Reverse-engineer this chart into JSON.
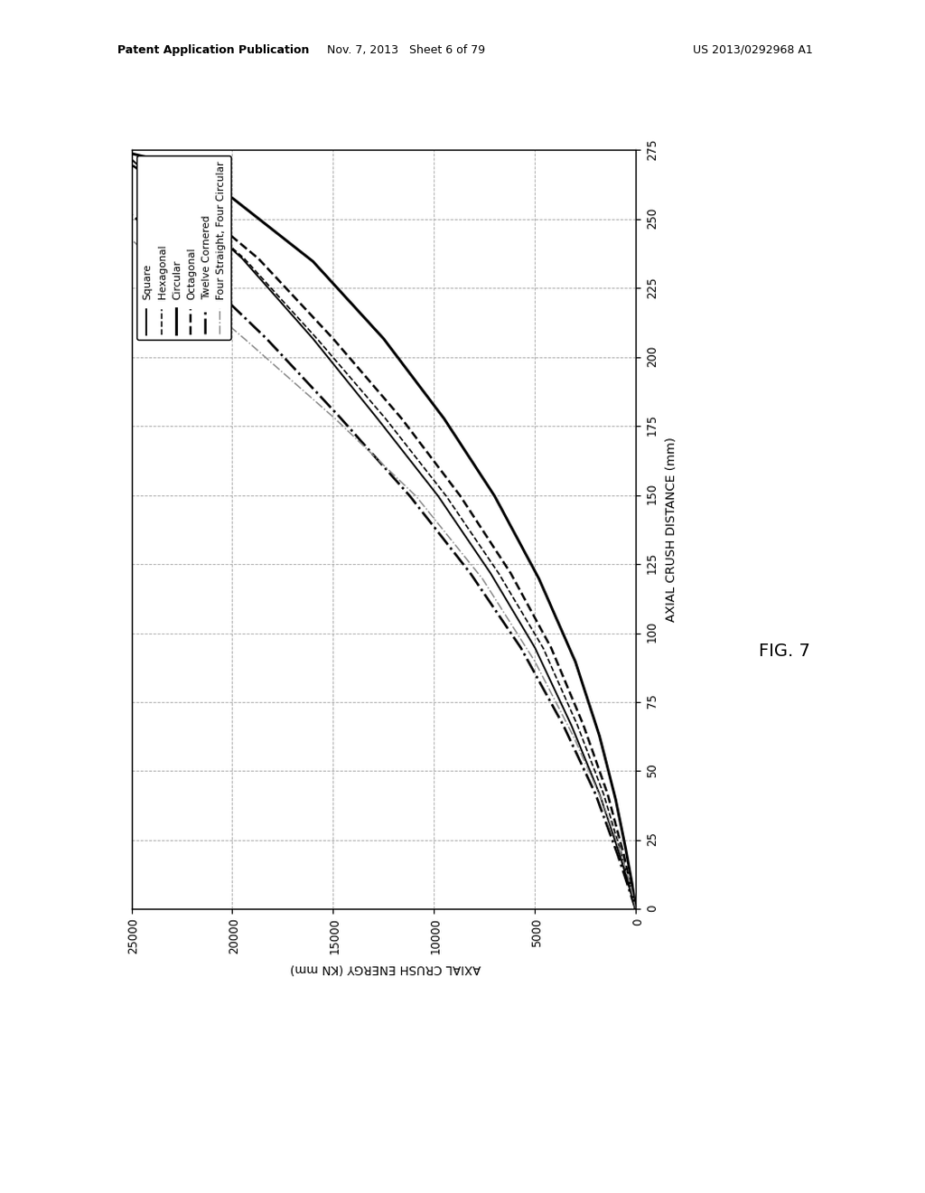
{
  "header_left": "Patent Application Publication",
  "header_mid": "Nov. 7, 2013   Sheet 6 of 79",
  "header_right": "US 2013/0292968 A1",
  "fig_label": "FIG. 7",
  "energy_label": "AXIAL CRUSH ENERGY (KN mm)",
  "distance_label": "AXIAL CRUSH DISTANCE (mm)",
  "energy_lim": [
    0,
    25000
  ],
  "distance_lim": [
    0,
    275
  ],
  "energy_ticks": [
    0,
    5000,
    10000,
    15000,
    20000,
    25000
  ],
  "distance_ticks": [
    0,
    25,
    50,
    75,
    100,
    125,
    150,
    175,
    200,
    225,
    250,
    275
  ],
  "series": [
    {
      "label": "Square",
      "style": "-",
      "color": "#000000",
      "linewidth": 1.3,
      "energy": [
        0,
        800,
        1800,
        3200,
        5000,
        7200,
        9800,
        12800,
        16000,
        19500,
        22800,
        25000
      ],
      "distance": [
        0,
        20,
        42,
        67,
        95,
        122,
        150,
        178,
        207,
        236,
        258,
        272
      ]
    },
    {
      "label": "Hexagonal",
      "style": "--",
      "color": "#000000",
      "linewidth": 1.1,
      "energy": [
        0,
        700,
        1600,
        2900,
        4600,
        6800,
        9400,
        12400,
        15800,
        19400,
        22800,
        25000
      ],
      "distance": [
        0,
        20,
        42,
        67,
        95,
        122,
        150,
        178,
        207,
        236,
        258,
        270
      ]
    },
    {
      "label": "Circular",
      "style": "-",
      "color": "#000000",
      "linewidth": 2.0,
      "energy": [
        0,
        200,
        500,
        1000,
        1800,
        3000,
        4800,
        7000,
        9500,
        12500,
        16000,
        20000,
        23800,
        25500
      ],
      "distance": [
        0,
        10,
        22,
        40,
        63,
        90,
        120,
        150,
        178,
        207,
        235,
        258,
        272,
        275
      ]
    },
    {
      "label": "Octagonal",
      "style": "--",
      "color": "#000000",
      "linewidth": 1.7,
      "energy": [
        0,
        600,
        1400,
        2600,
        4200,
        6200,
        8700,
        11600,
        15000,
        18700,
        22300,
        25000
      ],
      "distance": [
        0,
        20,
        42,
        67,
        95,
        122,
        150,
        178,
        207,
        236,
        258,
        270
      ]
    },
    {
      "label": "Twelve Cornered",
      "style": "-.",
      "color": "#000000",
      "linewidth": 1.8,
      "energy": [
        0,
        900,
        2000,
        3600,
        5700,
        8200,
        11200,
        14600,
        18300,
        22000,
        25000
      ],
      "distance": [
        0,
        20,
        42,
        67,
        95,
        122,
        150,
        178,
        207,
        233,
        252
      ]
    },
    {
      "label": "Four Straight, Four Circular",
      "style": "-.",
      "color": "#888888",
      "linewidth": 1.0,
      "energy": [
        0,
        300,
        800,
        1700,
        3100,
        5000,
        7600,
        10900,
        14900,
        19400,
        23400,
        25000
      ],
      "distance": [
        0,
        10,
        22,
        40,
        63,
        90,
        120,
        150,
        178,
        207,
        232,
        243
      ]
    }
  ]
}
